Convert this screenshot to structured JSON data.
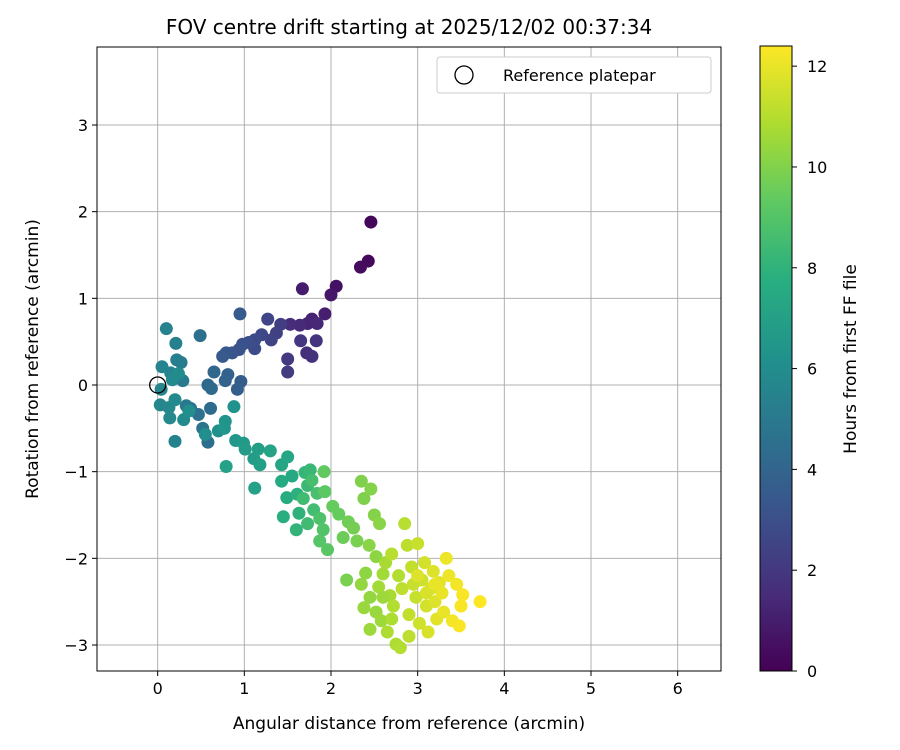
{
  "chart_data": {
    "type": "scatter",
    "title": "FOV centre drift starting at 2025/12/02 00:37:34",
    "xlabel": "Angular distance from reference (arcmin)",
    "ylabel": "Rotation from reference (arcmin)",
    "xlim": [
      -0.7,
      6.5
    ],
    "ylim": [
      -3.3,
      3.9
    ],
    "xticks": [
      0,
      1,
      2,
      3,
      4,
      5,
      6
    ],
    "yticks": [
      -3,
      -2,
      -1,
      0,
      1,
      2,
      3
    ],
    "grid": true,
    "legend": {
      "position": "top-right",
      "entries": [
        "Reference platepar"
      ]
    },
    "reference_point": {
      "x": 0,
      "y": 0
    },
    "colorbar": {
      "label": "Hours from first FF file",
      "range": [
        0,
        12.4
      ],
      "ticks": [
        0,
        2,
        4,
        6,
        8,
        10,
        12
      ],
      "colormap": "viridis"
    },
    "points": [
      {
        "x": 2.46,
        "y": 1.88,
        "c": 0.2
      },
      {
        "x": 2.43,
        "y": 1.43,
        "c": 0.3
      },
      {
        "x": 2.34,
        "y": 1.36,
        "c": 0.4
      },
      {
        "x": 2.06,
        "y": 1.14,
        "c": 0.6
      },
      {
        "x": 2.0,
        "y": 1.04,
        "c": 0.8
      },
      {
        "x": 1.67,
        "y": 1.11,
        "c": 1.0
      },
      {
        "x": 1.93,
        "y": 0.82,
        "c": 1.1
      },
      {
        "x": 1.78,
        "y": 0.76,
        "c": 1.2
      },
      {
        "x": 1.73,
        "y": 0.71,
        "c": 1.3
      },
      {
        "x": 1.84,
        "y": 0.71,
        "c": 1.4
      },
      {
        "x": 1.64,
        "y": 0.69,
        "c": 1.5
      },
      {
        "x": 1.53,
        "y": 0.7,
        "c": 1.6
      },
      {
        "x": 1.72,
        "y": 0.37,
        "c": 1.7
      },
      {
        "x": 1.78,
        "y": 0.33,
        "c": 1.8
      },
      {
        "x": 1.83,
        "y": 0.51,
        "c": 1.9
      },
      {
        "x": 1.65,
        "y": 0.51,
        "c": 2.0
      },
      {
        "x": 1.5,
        "y": 0.3,
        "c": 2.1
      },
      {
        "x": 1.5,
        "y": 0.15,
        "c": 2.2
      },
      {
        "x": 1.42,
        "y": 0.7,
        "c": 2.3
      },
      {
        "x": 1.37,
        "y": 0.6,
        "c": 2.4
      },
      {
        "x": 1.31,
        "y": 0.52,
        "c": 2.5
      },
      {
        "x": 1.27,
        "y": 0.76,
        "c": 2.6
      },
      {
        "x": 1.2,
        "y": 0.58,
        "c": 2.7
      },
      {
        "x": 1.12,
        "y": 0.52,
        "c": 2.8
      },
      {
        "x": 1.12,
        "y": 0.42,
        "c": 2.9
      },
      {
        "x": 1.05,
        "y": 0.49,
        "c": 3.0
      },
      {
        "x": 0.98,
        "y": 0.47,
        "c": 3.1
      },
      {
        "x": 0.94,
        "y": 0.41,
        "c": 3.2
      },
      {
        "x": 0.86,
        "y": 0.37,
        "c": 3.3
      },
      {
        "x": 0.79,
        "y": 0.37,
        "c": 3.4
      },
      {
        "x": 0.75,
        "y": 0.33,
        "c": 3.5
      },
      {
        "x": 0.95,
        "y": 0.82,
        "c": 3.6
      },
      {
        "x": 0.96,
        "y": 0.04,
        "c": 3.7
      },
      {
        "x": 0.92,
        "y": -0.05,
        "c": 3.8
      },
      {
        "x": 0.81,
        "y": 0.12,
        "c": 3.9
      },
      {
        "x": 0.78,
        "y": 0.05,
        "c": 4.0
      },
      {
        "x": 0.65,
        "y": 0.15,
        "c": 4.1
      },
      {
        "x": 0.58,
        "y": 0.0,
        "c": 4.2
      },
      {
        "x": 0.62,
        "y": -0.04,
        "c": 4.3
      },
      {
        "x": 0.61,
        "y": -0.27,
        "c": 4.4
      },
      {
        "x": 0.58,
        "y": -0.66,
        "c": 4.5
      },
      {
        "x": 0.49,
        "y": 0.57,
        "c": 4.6
      },
      {
        "x": 0.47,
        "y": -0.34,
        "c": 4.7
      },
      {
        "x": 0.52,
        "y": -0.5,
        "c": 4.8
      },
      {
        "x": 0.38,
        "y": -0.27,
        "c": 4.9
      },
      {
        "x": 0.33,
        "y": -0.24,
        "c": 5.0
      },
      {
        "x": 0.29,
        "y": 0.05,
        "c": 5.1
      },
      {
        "x": 0.27,
        "y": 0.26,
        "c": 5.2
      },
      {
        "x": 0.22,
        "y": 0.29,
        "c": 5.3
      },
      {
        "x": 0.21,
        "y": 0.48,
        "c": 5.4
      },
      {
        "x": 0.1,
        "y": 0.65,
        "c": 5.5
      },
      {
        "x": 0.2,
        "y": -0.65,
        "c": 5.5
      },
      {
        "x": 0.15,
        "y": 0.14,
        "c": 5.6
      },
      {
        "x": 0.05,
        "y": 0.21,
        "c": 5.6
      },
      {
        "x": 0.04,
        "y": -0.05,
        "c": 5.7
      },
      {
        "x": 0.03,
        "y": -0.23,
        "c": 5.7
      },
      {
        "x": 0.13,
        "y": -0.26,
        "c": 5.8
      },
      {
        "x": 0.14,
        "y": -0.38,
        "c": 5.8
      },
      {
        "x": 0.2,
        "y": -0.17,
        "c": 5.9
      },
      {
        "x": 0.17,
        "y": 0.06,
        "c": 5.9
      },
      {
        "x": 0.24,
        "y": 0.13,
        "c": 6.0
      },
      {
        "x": 0.3,
        "y": -0.4,
        "c": 6.0
      },
      {
        "x": 0.36,
        "y": -0.3,
        "c": 6.1
      },
      {
        "x": 0.55,
        "y": -0.57,
        "c": 6.1
      },
      {
        "x": 0.7,
        "y": -0.53,
        "c": 6.2
      },
      {
        "x": 0.88,
        "y": -0.25,
        "c": 6.3
      },
      {
        "x": 0.78,
        "y": -0.42,
        "c": 6.4
      },
      {
        "x": 0.77,
        "y": -0.5,
        "c": 6.5
      },
      {
        "x": 0.9,
        "y": -0.64,
        "c": 6.6
      },
      {
        "x": 0.99,
        "y": -0.67,
        "c": 6.7
      },
      {
        "x": 1.01,
        "y": -0.74,
        "c": 6.8
      },
      {
        "x": 1.11,
        "y": -0.85,
        "c": 6.9
      },
      {
        "x": 1.16,
        "y": -0.74,
        "c": 7.0
      },
      {
        "x": 1.18,
        "y": -0.92,
        "c": 7.0
      },
      {
        "x": 0.79,
        "y": -0.94,
        "c": 7.1
      },
      {
        "x": 1.12,
        "y": -1.19,
        "c": 7.1
      },
      {
        "x": 1.3,
        "y": -0.76,
        "c": 7.2
      },
      {
        "x": 1.43,
        "y": -0.92,
        "c": 7.3
      },
      {
        "x": 1.5,
        "y": -0.83,
        "c": 7.4
      },
      {
        "x": 1.55,
        "y": -1.05,
        "c": 7.5
      },
      {
        "x": 1.43,
        "y": -1.11,
        "c": 7.6
      },
      {
        "x": 1.49,
        "y": -1.3,
        "c": 7.7
      },
      {
        "x": 1.45,
        "y": -1.52,
        "c": 7.8
      },
      {
        "x": 1.61,
        "y": -1.26,
        "c": 7.9
      },
      {
        "x": 1.63,
        "y": -1.48,
        "c": 8.0
      },
      {
        "x": 1.6,
        "y": -1.67,
        "c": 8.1
      },
      {
        "x": 1.7,
        "y": -1.01,
        "c": 8.2
      },
      {
        "x": 1.76,
        "y": -0.98,
        "c": 8.3
      },
      {
        "x": 1.73,
        "y": -1.16,
        "c": 8.4
      },
      {
        "x": 1.68,
        "y": -1.31,
        "c": 8.5
      },
      {
        "x": 1.73,
        "y": -1.6,
        "c": 8.5
      },
      {
        "x": 1.8,
        "y": -1.44,
        "c": 8.6
      },
      {
        "x": 1.78,
        "y": -1.1,
        "c": 8.7
      },
      {
        "x": 1.84,
        "y": -1.25,
        "c": 8.8
      },
      {
        "x": 1.87,
        "y": -1.54,
        "c": 8.9
      },
      {
        "x": 1.91,
        "y": -1.67,
        "c": 9.0
      },
      {
        "x": 1.87,
        "y": -1.8,
        "c": 9.1
      },
      {
        "x": 1.96,
        "y": -1.9,
        "c": 9.2
      },
      {
        "x": 1.93,
        "y": -1.23,
        "c": 9.3
      },
      {
        "x": 1.92,
        "y": -1.0,
        "c": 9.4
      },
      {
        "x": 2.02,
        "y": -1.4,
        "c": 9.5
      },
      {
        "x": 2.09,
        "y": -1.49,
        "c": 9.5
      },
      {
        "x": 2.14,
        "y": -1.76,
        "c": 9.6
      },
      {
        "x": 2.2,
        "y": -1.58,
        "c": 9.7
      },
      {
        "x": 2.26,
        "y": -1.65,
        "c": 9.8
      },
      {
        "x": 2.3,
        "y": -1.8,
        "c": 9.9
      },
      {
        "x": 2.18,
        "y": -2.25,
        "c": 9.9
      },
      {
        "x": 2.38,
        "y": -1.31,
        "c": 10.0
      },
      {
        "x": 2.35,
        "y": -1.11,
        "c": 10.0
      },
      {
        "x": 2.46,
        "y": -1.2,
        "c": 10.1
      },
      {
        "x": 2.5,
        "y": -1.5,
        "c": 10.1
      },
      {
        "x": 2.56,
        "y": -1.6,
        "c": 10.2
      },
      {
        "x": 2.44,
        "y": -1.85,
        "c": 10.2
      },
      {
        "x": 2.52,
        "y": -1.98,
        "c": 10.3
      },
      {
        "x": 2.4,
        "y": -2.17,
        "c": 10.3
      },
      {
        "x": 2.35,
        "y": -2.3,
        "c": 10.4
      },
      {
        "x": 2.45,
        "y": -2.45,
        "c": 10.4
      },
      {
        "x": 2.38,
        "y": -2.57,
        "c": 10.5
      },
      {
        "x": 2.52,
        "y": -2.62,
        "c": 10.5
      },
      {
        "x": 2.45,
        "y": -2.82,
        "c": 10.6
      },
      {
        "x": 2.58,
        "y": -2.72,
        "c": 10.6
      },
      {
        "x": 2.6,
        "y": -2.18,
        "c": 10.7
      },
      {
        "x": 2.55,
        "y": -2.33,
        "c": 10.7
      },
      {
        "x": 2.63,
        "y": -2.05,
        "c": 10.8
      },
      {
        "x": 2.68,
        "y": -2.43,
        "c": 10.8
      },
      {
        "x": 2.65,
        "y": -2.85,
        "c": 10.9
      },
      {
        "x": 2.75,
        "y": -2.99,
        "c": 10.9
      },
      {
        "x": 2.8,
        "y": -3.03,
        "c": 11.0
      },
      {
        "x": 2.72,
        "y": -2.55,
        "c": 11.0
      },
      {
        "x": 2.78,
        "y": -2.2,
        "c": 11.0
      },
      {
        "x": 2.7,
        "y": -1.95,
        "c": 11.1
      },
      {
        "x": 2.85,
        "y": -1.6,
        "c": 11.1
      },
      {
        "x": 2.88,
        "y": -1.85,
        "c": 11.2
      },
      {
        "x": 2.82,
        "y": -2.35,
        "c": 11.2
      },
      {
        "x": 2.9,
        "y": -2.65,
        "c": 11.3
      },
      {
        "x": 2.93,
        "y": -2.1,
        "c": 11.3
      },
      {
        "x": 2.98,
        "y": -2.45,
        "c": 11.4
      },
      {
        "x": 3.0,
        "y": -1.83,
        "c": 11.4
      },
      {
        "x": 3.02,
        "y": -2.75,
        "c": 11.5
      },
      {
        "x": 3.05,
        "y": -2.25,
        "c": 11.5
      },
      {
        "x": 3.08,
        "y": -2.05,
        "c": 11.6
      },
      {
        "x": 3.1,
        "y": -2.55,
        "c": 11.6
      },
      {
        "x": 3.12,
        "y": -2.85,
        "c": 11.7
      },
      {
        "x": 3.15,
        "y": -2.35,
        "c": 11.7
      },
      {
        "x": 3.18,
        "y": -2.15,
        "c": 11.8
      },
      {
        "x": 3.2,
        "y": -2.5,
        "c": 11.8
      },
      {
        "x": 3.22,
        "y": -2.7,
        "c": 11.9
      },
      {
        "x": 3.25,
        "y": -2.28,
        "c": 11.9
      },
      {
        "x": 3.28,
        "y": -2.4,
        "c": 12.0
      },
      {
        "x": 3.3,
        "y": -2.62,
        "c": 12.0
      },
      {
        "x": 3.33,
        "y": -2.0,
        "c": 12.1
      },
      {
        "x": 3.36,
        "y": -2.2,
        "c": 12.1
      },
      {
        "x": 3.4,
        "y": -2.72,
        "c": 12.2
      },
      {
        "x": 3.45,
        "y": -2.3,
        "c": 12.2
      },
      {
        "x": 3.48,
        "y": -2.78,
        "c": 12.3
      },
      {
        "x": 3.52,
        "y": -2.42,
        "c": 12.3
      },
      {
        "x": 3.5,
        "y": -2.55,
        "c": 12.3
      },
      {
        "x": 3.72,
        "y": -2.5,
        "c": 12.4
      },
      {
        "x": 2.95,
        "y": -2.3,
        "c": 11.4
      },
      {
        "x": 2.6,
        "y": -2.45,
        "c": 10.6
      },
      {
        "x": 2.7,
        "y": -2.7,
        "c": 10.9
      },
      {
        "x": 2.9,
        "y": -2.9,
        "c": 11.2
      },
      {
        "x": 3.1,
        "y": -2.4,
        "c": 11.7
      },
      {
        "x": 3.2,
        "y": -2.3,
        "c": 12.0
      },
      {
        "x": 3.0,
        "y": -2.2,
        "c": 11.8
      }
    ]
  }
}
